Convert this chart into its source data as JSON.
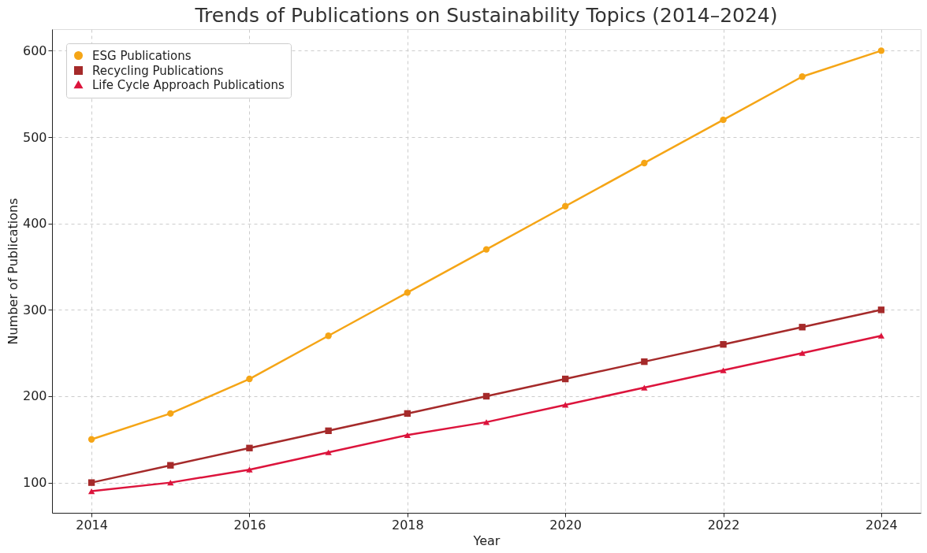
{
  "chart_data": {
    "type": "line",
    "title": "Trends of Publications on Sustainability Topics (2014–2024)",
    "xlabel": "Year",
    "ylabel": "Number of Publications",
    "x": [
      2014,
      2015,
      2016,
      2017,
      2018,
      2019,
      2020,
      2021,
      2022,
      2023,
      2024
    ],
    "series": [
      {
        "name": "ESG Publications",
        "color": "#f5a516",
        "marker": "circle",
        "values": [
          150,
          180,
          220,
          270,
          320,
          370,
          420,
          470,
          520,
          570,
          600
        ]
      },
      {
        "name": "Recycling Publications",
        "color": "#a52a2a",
        "marker": "square",
        "values": [
          100,
          120,
          140,
          160,
          180,
          200,
          220,
          240,
          260,
          280,
          300
        ]
      },
      {
        "name": "Life Cycle Approach Publications",
        "color": "#dc143c",
        "marker": "triangle",
        "values": [
          90,
          100,
          115,
          135,
          155,
          170,
          190,
          210,
          230,
          250,
          270
        ]
      }
    ],
    "xlim": [
      2013.5,
      2024.5
    ],
    "xticks": [
      2014,
      2016,
      2018,
      2020,
      2022,
      2024
    ],
    "ylim": [
      65,
      625
    ],
    "yticks": [
      100,
      200,
      300,
      400,
      500,
      600
    ],
    "grid": true,
    "legend": "top left",
    "line_style": "solid"
  }
}
